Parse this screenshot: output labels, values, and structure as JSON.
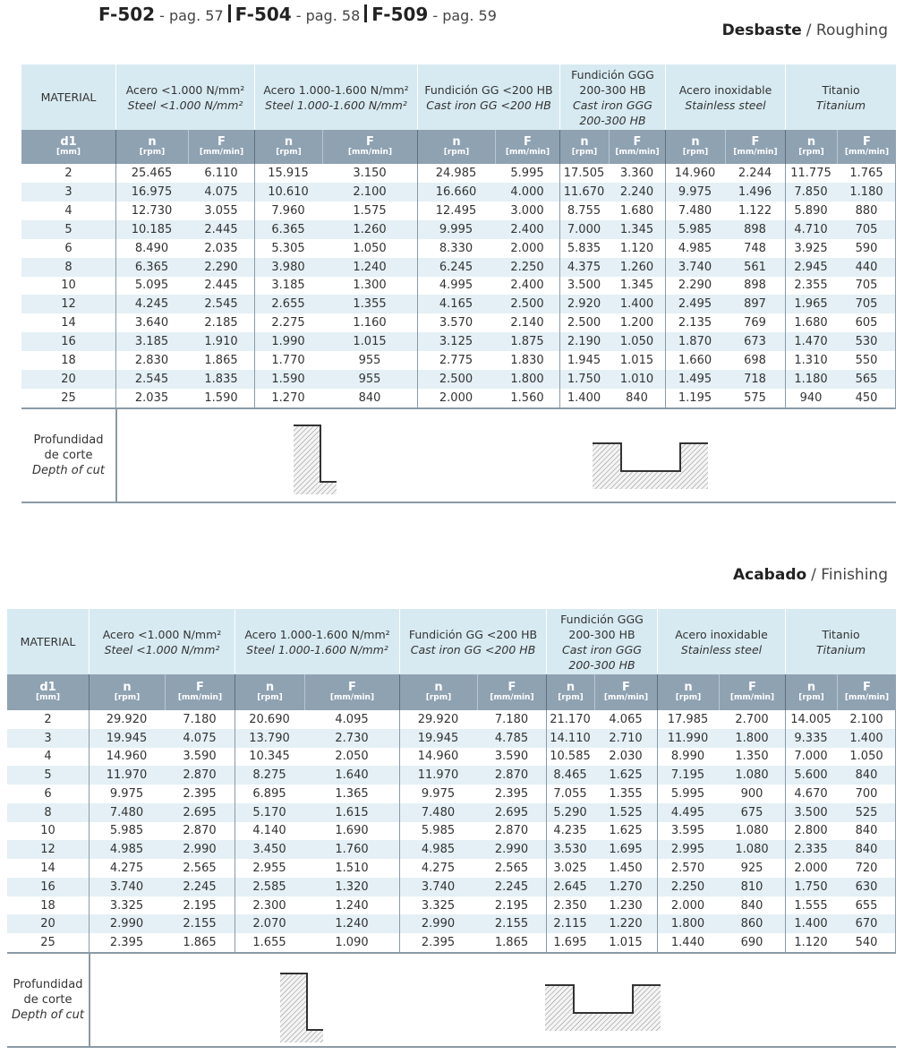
{
  "header": {
    "refs": [
      {
        "code": "F-502",
        "page": "- pag. 57"
      },
      {
        "code": "F-504",
        "page": "- pag. 58"
      },
      {
        "code": "F-509",
        "page": "- pag. 59"
      }
    ]
  },
  "columns": {
    "material": "MATERIAL",
    "materials": [
      {
        "es": "Acero <1.000 N/mm²",
        "en": "Steel <1.000 N/mm²"
      },
      {
        "es": "Acero 1.000-1.600 N/mm²",
        "en": "Steel 1.000-1.600 N/mm²"
      },
      {
        "es": "Fundición GG <200 HB",
        "en": "Cast iron GG <200 HB"
      },
      {
        "es": "Fundición GGG 200-300 HB",
        "en": "Cast iron GGG 200-300 HB"
      },
      {
        "es": "Acero inoxidable",
        "en": "Stainless steel"
      },
      {
        "es": "Titanio",
        "en": "Titanium"
      }
    ],
    "d1": "d1",
    "d1_unit": "[mm]",
    "n": "n",
    "n_unit": "[rpm]",
    "f": "F",
    "f_unit": "[mm/min]",
    "depth_es": [
      "Profundidad",
      "de corte"
    ],
    "depth_en": "Depth of cut"
  },
  "sections": [
    {
      "heading_bold": "Desbaste",
      "heading_rest": "/ Roughing",
      "rows": [
        [
          "2",
          "25.465",
          "6.110",
          "15.915",
          "3.150",
          "24.985",
          "5.995",
          "17.505",
          "3.360",
          "14.960",
          "2.244",
          "11.775",
          "1.765"
        ],
        [
          "3",
          "16.975",
          "4.075",
          "10.610",
          "2.100",
          "16.660",
          "4.000",
          "11.670",
          "2.240",
          "9.975",
          "1.496",
          "7.850",
          "1.180"
        ],
        [
          "4",
          "12.730",
          "3.055",
          "7.960",
          "1.575",
          "12.495",
          "3.000",
          "8.755",
          "1.680",
          "7.480",
          "1.122",
          "5.890",
          "880"
        ],
        [
          "5",
          "10.185",
          "2.445",
          "6.365",
          "1.260",
          "9.995",
          "2.400",
          "7.000",
          "1.345",
          "5.985",
          "898",
          "4.710",
          "705"
        ],
        [
          "6",
          "8.490",
          "2.035",
          "5.305",
          "1.050",
          "8.330",
          "2.000",
          "5.835",
          "1.120",
          "4.985",
          "748",
          "3.925",
          "590"
        ],
        [
          "8",
          "6.365",
          "2.290",
          "3.980",
          "1.240",
          "6.245",
          "2.250",
          "4.375",
          "1.260",
          "3.740",
          "561",
          "2.945",
          "440"
        ],
        [
          "10",
          "5.095",
          "2.445",
          "3.185",
          "1.300",
          "4.995",
          "2.400",
          "3.500",
          "1.345",
          "2.290",
          "898",
          "2.355",
          "705"
        ],
        [
          "12",
          "4.245",
          "2.545",
          "2.655",
          "1.355",
          "4.165",
          "2.500",
          "2.920",
          "1.400",
          "2.495",
          "897",
          "1.965",
          "705"
        ],
        [
          "14",
          "3.640",
          "2.185",
          "2.275",
          "1.160",
          "3.570",
          "2.140",
          "2.500",
          "1.200",
          "2.135",
          "769",
          "1.680",
          "605"
        ],
        [
          "16",
          "3.185",
          "1.910",
          "1.990",
          "1.015",
          "3.125",
          "1.875",
          "2.190",
          "1.050",
          "1.870",
          "673",
          "1.470",
          "530"
        ],
        [
          "18",
          "2.830",
          "1.865",
          "1.770",
          "955",
          "2.775",
          "1.830",
          "1.945",
          "1.015",
          "1.660",
          "698",
          "1.310",
          "550"
        ],
        [
          "20",
          "2.545",
          "1.835",
          "1.590",
          "955",
          "2.500",
          "1.800",
          "1.750",
          "1.010",
          "1.495",
          "718",
          "1.180",
          "565"
        ],
        [
          "25",
          "2.035",
          "1.590",
          "1.270",
          "840",
          "2.000",
          "1.560",
          "1.400",
          "840",
          "1.195",
          "575",
          "940",
          "450"
        ]
      ]
    },
    {
      "heading_bold": "Acabado",
      "heading_rest": "/ Finishing",
      "rows": [
        [
          "2",
          "29.920",
          "7.180",
          "20.690",
          "4.095",
          "29.920",
          "7.180",
          "21.170",
          "4.065",
          "17.985",
          "2.700",
          "14.005",
          "2.100"
        ],
        [
          "3",
          "19.945",
          "4.075",
          "13.790",
          "2.730",
          "19.945",
          "4.785",
          "14.110",
          "2.710",
          "11.990",
          "1.800",
          "9.335",
          "1.400"
        ],
        [
          "4",
          "14.960",
          "3.590",
          "10.345",
          "2.050",
          "14.960",
          "3.590",
          "10.585",
          "2.030",
          "8.990",
          "1.350",
          "7.000",
          "1.050"
        ],
        [
          "5",
          "11.970",
          "2.870",
          "8.275",
          "1.640",
          "11.970",
          "2.870",
          "8.465",
          "1.625",
          "7.195",
          "1.080",
          "5.600",
          "840"
        ],
        [
          "6",
          "9.975",
          "2.395",
          "6.895",
          "1.365",
          "9.975",
          "2.395",
          "7.055",
          "1.355",
          "5.995",
          "900",
          "4.670",
          "700"
        ],
        [
          "8",
          "7.480",
          "2.695",
          "5.170",
          "1.615",
          "7.480",
          "2.695",
          "5.290",
          "1.525",
          "4.495",
          "675",
          "3.500",
          "525"
        ],
        [
          "10",
          "5.985",
          "2.870",
          "4.140",
          "1.690",
          "5.985",
          "2.870",
          "4.235",
          "1.625",
          "3.595",
          "1.080",
          "2.800",
          "840"
        ],
        [
          "12",
          "4.985",
          "2.990",
          "3.450",
          "1.760",
          "4.985",
          "2.990",
          "3.530",
          "1.695",
          "2.995",
          "1.080",
          "2.335",
          "840"
        ],
        [
          "14",
          "4.275",
          "2.565",
          "2.955",
          "1.510",
          "4.275",
          "2.565",
          "3.025",
          "1.450",
          "2.570",
          "925",
          "2.000",
          "720"
        ],
        [
          "16",
          "3.740",
          "2.245",
          "2.585",
          "1.320",
          "3.740",
          "2.245",
          "2.645",
          "1.270",
          "2.250",
          "810",
          "1.750",
          "630"
        ],
        [
          "18",
          "3.325",
          "2.195",
          "2.300",
          "1.240",
          "3.325",
          "2.195",
          "2.350",
          "1.230",
          "2.000",
          "840",
          "1.555",
          "655"
        ],
        [
          "20",
          "2.990",
          "2.155",
          "2.070",
          "1.240",
          "2.990",
          "2.155",
          "2.115",
          "1.220",
          "1.800",
          "860",
          "1.400",
          "670"
        ],
        [
          "25",
          "2.395",
          "1.865",
          "1.655",
          "1.090",
          "2.395",
          "1.865",
          "1.695",
          "1.015",
          "1.440",
          "690",
          "1.120",
          "540"
        ]
      ]
    }
  ]
}
